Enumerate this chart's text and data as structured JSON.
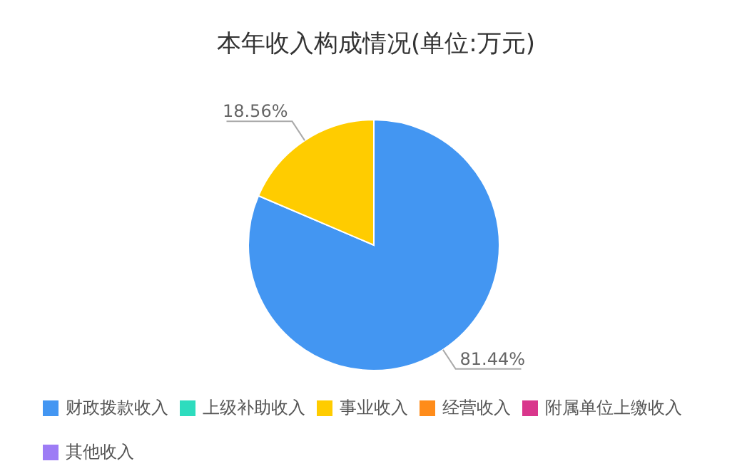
{
  "chart_data": {
    "type": "pie",
    "title": "本年收入构成情况(单位:万元)",
    "categories": [
      "财政拨款收入",
      "上级补助收入",
      "事业收入",
      "经营收入",
      "附属单位上缴收入",
      "其他收入"
    ],
    "values": [
      81.44,
      0,
      18.56,
      0,
      0,
      0
    ],
    "colors": [
      "#4396f2",
      "#2edcbe",
      "#ffcc00",
      "#ff8c1a",
      "#d9368c",
      "#9d7cf5"
    ],
    "value_labels": [
      "81.44%",
      null,
      "18.56%",
      null,
      null,
      null
    ],
    "legend": "bottom"
  }
}
